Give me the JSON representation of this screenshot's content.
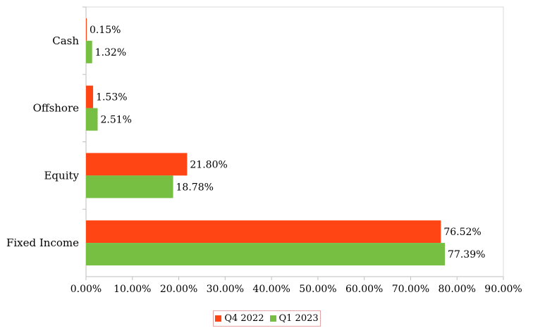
{
  "chart_data": {
    "type": "bar",
    "orientation": "horizontal",
    "categories": [
      "Fixed Income",
      "Equity",
      "Offshore",
      "Cash"
    ],
    "series": [
      {
        "name": "Q4 2022",
        "color": "#ff4514",
        "values": [
          76.52,
          21.8,
          1.53,
          0.15
        ],
        "labels": [
          "76.52%",
          "21.80%",
          "1.53%",
          "0.15%"
        ]
      },
      {
        "name": "Q1 2023",
        "color": "#77bf43",
        "values": [
          77.39,
          18.78,
          2.51,
          1.32
        ],
        "labels": [
          "77.39%",
          "18.78%",
          "2.51%",
          "1.32%"
        ]
      }
    ],
    "xlim": [
      0,
      90
    ],
    "x_ticks": [
      "0.00%",
      "10.00%",
      "20.00%",
      "30.00%",
      "40.00%",
      "50.00%",
      "60.00%",
      "70.00%",
      "80.00%",
      "90.00%"
    ],
    "grid": false,
    "legend_position": "bottom"
  }
}
